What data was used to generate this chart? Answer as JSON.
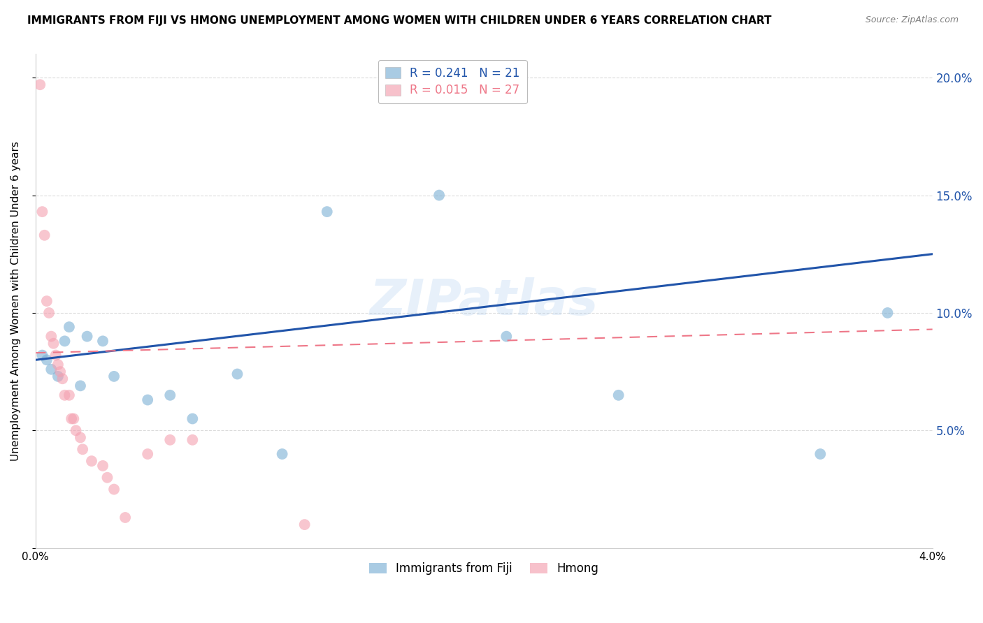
{
  "title": "IMMIGRANTS FROM FIJI VS HMONG UNEMPLOYMENT AMONG WOMEN WITH CHILDREN UNDER 6 YEARS CORRELATION CHART",
  "source": "Source: ZipAtlas.com",
  "ylabel": "Unemployment Among Women with Children Under 6 years",
  "xlim": [
    0.0,
    0.04
  ],
  "ylim": [
    0.0,
    0.21
  ],
  "yticks": [
    0.0,
    0.05,
    0.1,
    0.15,
    0.2
  ],
  "ytick_labels": [
    "",
    "5.0%",
    "10.0%",
    "15.0%",
    "20.0%"
  ],
  "xticks": [
    0.0,
    0.01,
    0.02,
    0.03,
    0.04
  ],
  "xtick_labels": [
    "0.0%",
    "",
    "",
    "",
    "4.0%"
  ],
  "fiji_R": "0.241",
  "fiji_N": "21",
  "hmong_R": "0.015",
  "hmong_N": "27",
  "fiji_color": "#7BAFD4",
  "hmong_color": "#F4A0B0",
  "fiji_line_color": "#2255AA",
  "hmong_line_color": "#EE7788",
  "fiji_points_x": [
    0.0003,
    0.0005,
    0.0007,
    0.001,
    0.0013,
    0.0015,
    0.002,
    0.0023,
    0.003,
    0.0035,
    0.005,
    0.006,
    0.007,
    0.009,
    0.011,
    0.013,
    0.018,
    0.021,
    0.026,
    0.035,
    0.038
  ],
  "fiji_points_y": [
    0.082,
    0.08,
    0.076,
    0.073,
    0.088,
    0.094,
    0.069,
    0.09,
    0.088,
    0.073,
    0.063,
    0.065,
    0.055,
    0.074,
    0.04,
    0.143,
    0.15,
    0.09,
    0.065,
    0.04,
    0.1
  ],
  "hmong_points_x": [
    0.0002,
    0.0003,
    0.0004,
    0.0005,
    0.0006,
    0.0007,
    0.0008,
    0.0009,
    0.001,
    0.0011,
    0.0012,
    0.0013,
    0.0015,
    0.0016,
    0.0017,
    0.0018,
    0.002,
    0.0021,
    0.0025,
    0.003,
    0.0032,
    0.0035,
    0.004,
    0.005,
    0.006,
    0.007,
    0.012
  ],
  "hmong_points_y": [
    0.197,
    0.143,
    0.133,
    0.105,
    0.1,
    0.09,
    0.087,
    0.082,
    0.078,
    0.075,
    0.072,
    0.065,
    0.065,
    0.055,
    0.055,
    0.05,
    0.047,
    0.042,
    0.037,
    0.035,
    0.03,
    0.025,
    0.013,
    0.04,
    0.046,
    0.046,
    0.01
  ],
  "fiji_trend_x0": 0.0,
  "fiji_trend_x1": 0.04,
  "fiji_trend_y0": 0.08,
  "fiji_trend_y1": 0.125,
  "hmong_trend_x0": 0.0,
  "hmong_trend_x1": 0.04,
  "hmong_trend_y0": 0.083,
  "hmong_trend_y1": 0.093,
  "watermark": "ZIPatlas",
  "bg_color": "#FFFFFF",
  "grid_color": "#CCCCCC"
}
